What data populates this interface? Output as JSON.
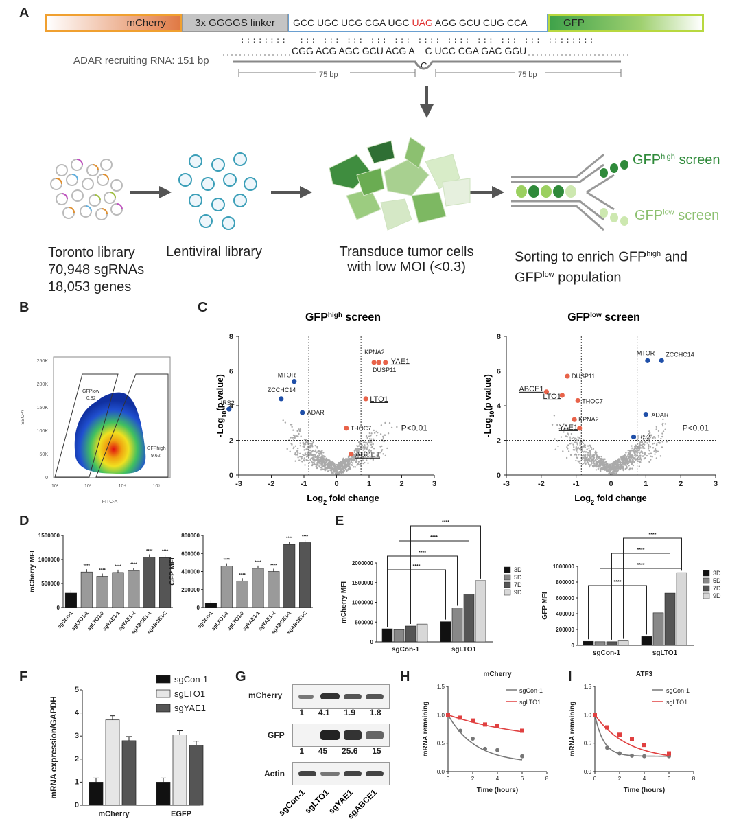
{
  "panels": {
    "A": "A",
    "B": "B",
    "C": "C",
    "D": "D",
    "E": "E",
    "F": "F",
    "G": "G",
    "H": "H",
    "I": "I"
  },
  "panelA": {
    "construct": {
      "mcherry": "mCherry",
      "linker": "3x GGGGS linker",
      "seq_pre": "GCC UGC UCG CGA UGC ",
      "seq_stop": "UAG",
      "seq_post": " AGG GCU CUG CCA",
      "gfp": "GFP",
      "colors": {
        "mcherry": "#e07a45",
        "linker": "#bdbdbd",
        "gfp": "#3fa24a",
        "stop": "#e03030"
      }
    },
    "adar_label": "ADAR recruiting RNA: 151 bp",
    "guide_seq_left": "CGG ACG AGC GCU ACG A",
    "guide_seq_right": "C UCC CGA GAC GGU",
    "mismatch_base": "C",
    "span_left": "75 bp",
    "span_right": "75 bp",
    "steps": [
      {
        "lines": [
          "Toronto library",
          "70,948 sgRNAs",
          "18,053 genes"
        ]
      },
      {
        "lines": [
          "Lentiviral library"
        ]
      },
      {
        "lines": [
          "Transduce tumor cells",
          "with low MOI (<0.3)"
        ]
      },
      {
        "lines": [
          "Sorting to enrich GFP",
          "high",
          " and",
          "GFP",
          "low",
          " population"
        ]
      }
    ],
    "screen_high": {
      "main": "GFP",
      "sup": "high",
      "tail": " screen"
    },
    "screen_low": {
      "main": "GFP",
      "sup": "low",
      "tail": " screen"
    }
  },
  "panelB": {
    "ylabel": "SSC-A",
    "xlabel": "FITC-A",
    "yticks": [
      "250K",
      "200K",
      "150K",
      "100K",
      "50K",
      "0"
    ],
    "xticks": [
      "10²",
      "10³",
      "10⁴",
      "10⁵"
    ],
    "gate_low": {
      "name": "GFPlow",
      "value": "0.82"
    },
    "gate_high": {
      "name": "GFPhigh",
      "value": "9.62"
    }
  },
  "panelC": {
    "chart_data": [
      {
        "type": "scatter",
        "title": "GFPhigh screen",
        "xlabel": "Log2 fold change",
        "ylabel": "-Log10(p value)",
        "xlim": [
          -3,
          3
        ],
        "ylim": [
          0,
          8
        ],
        "threshold_label": "P<0.01",
        "points": [
          {
            "label": "IRS2",
            "x": -3.3,
            "y": 3.8,
            "group": "blue"
          },
          {
            "label": "ZCCHC14",
            "x": -1.7,
            "y": 4.4,
            "group": "blue"
          },
          {
            "label": "MTOR",
            "x": -1.3,
            "y": 5.4,
            "group": "blue"
          },
          {
            "label": "ADAR",
            "x": -1.05,
            "y": 3.6,
            "group": "blue"
          },
          {
            "label": "KPNA2",
            "x": 1.15,
            "y": 6.5,
            "group": "red"
          },
          {
            "label": "DUSP11",
            "x": 1.3,
            "y": 6.5,
            "group": "red"
          },
          {
            "label": "YAE1",
            "x": 1.5,
            "y": 6.5,
            "group": "red",
            "underline": true
          },
          {
            "label": "LTO1",
            "x": 0.9,
            "y": 4.4,
            "group": "red",
            "underline": true
          },
          {
            "label": "THOC7",
            "x": 0.3,
            "y": 2.7,
            "group": "red"
          },
          {
            "label": "ABCE1",
            "x": 0.45,
            "y": 1.2,
            "group": "red",
            "underline": true
          }
        ]
      },
      {
        "type": "scatter",
        "title": "GFPlow screen",
        "xlabel": "Log2 fold change",
        "ylabel": "-Log10(p value)",
        "xlim": [
          -3,
          3
        ],
        "ylim": [
          0,
          8
        ],
        "threshold_label": "P<0.01",
        "points": [
          {
            "label": "MTOR",
            "x": 1.05,
            "y": 6.6,
            "group": "blue"
          },
          {
            "label": "ZCCHC14",
            "x": 1.45,
            "y": 6.6,
            "group": "blue"
          },
          {
            "label": "ADAR",
            "x": 1.0,
            "y": 3.5,
            "group": "blue"
          },
          {
            "label": "IRS2",
            "x": 0.65,
            "y": 2.2,
            "group": "blue"
          },
          {
            "label": "DUSP11",
            "x": -1.25,
            "y": 5.7,
            "group": "red"
          },
          {
            "label": "ABCE1",
            "x": -1.85,
            "y": 4.8,
            "group": "red",
            "underline": true
          },
          {
            "label": "LTO1",
            "x": -1.4,
            "y": 4.6,
            "group": "red",
            "underline": true
          },
          {
            "label": "THOC7",
            "x": -0.95,
            "y": 4.3,
            "group": "red"
          },
          {
            "label": "KPNA2",
            "x": -1.05,
            "y": 3.2,
            "group": "red"
          },
          {
            "label": "YAE1",
            "x": -0.9,
            "y": 2.7,
            "group": "red",
            "underline": true
          }
        ]
      }
    ],
    "xticks": [
      "-3",
      "-2",
      "-1",
      "0",
      "1",
      "2",
      "3"
    ],
    "yticks": [
      "0",
      "2",
      "4",
      "6",
      "8"
    ]
  },
  "panelD": {
    "chart_data": [
      {
        "type": "bar",
        "ylabel": "mCherry MFI",
        "ylim": [
          0,
          1500000
        ],
        "yticks": [
          "1500000",
          "1000000",
          "500000",
          "0"
        ],
        "categories": [
          "sgCon-1",
          "sgLTO1-1",
          "sgLTO1-2",
          "sgYAE1-1",
          "sgYAE1-2",
          "sgABCE1-1",
          "sgABCE1-2"
        ],
        "values": [
          300000,
          740000,
          650000,
          730000,
          770000,
          1050000,
          1040000
        ],
        "fills": [
          "#111",
          "#9a9a9a",
          "#9a9a9a",
          "#9a9a9a",
          "#9a9a9a",
          "#555",
          "#555"
        ],
        "sig": [
          "",
          "****",
          "****",
          "****",
          "****",
          "****",
          "****"
        ]
      },
      {
        "type": "bar",
        "ylabel": "GFP MFI",
        "ylim": [
          0,
          800000
        ],
        "yticks": [
          "800000",
          "600000",
          "400000",
          "200000",
          "0"
        ],
        "categories": [
          "sgCon-1",
          "sgLTO1-1",
          "sgLTO1-2",
          "sgYAE1-1",
          "sgYAE1-2",
          "sgABCE1-1",
          "sgABCE1-2"
        ],
        "values": [
          50000,
          460000,
          295000,
          435000,
          400000,
          700000,
          720000
        ],
        "fills": [
          "#111",
          "#9a9a9a",
          "#9a9a9a",
          "#9a9a9a",
          "#9a9a9a",
          "#555",
          "#555"
        ],
        "sig": [
          "",
          "****",
          "****",
          "****",
          "****",
          "****",
          "****"
        ]
      }
    ]
  },
  "panelE": {
    "legend": [
      "3D",
      "5D",
      "7D",
      "9D"
    ],
    "fills": [
      "#111",
      "#888",
      "#555",
      "#d8d8d8"
    ],
    "sig": "****",
    "chart_data": [
      {
        "type": "bar",
        "ylabel": "mCherry MFI",
        "ylim": [
          0,
          2000000
        ],
        "yticks": [
          "2000000",
          "1500000",
          "1000000",
          "500000",
          "0"
        ],
        "categories": [
          "sgCon-1",
          "sgLTO1"
        ],
        "series": [
          {
            "name": "3D",
            "values": [
              330000,
              510000
            ]
          },
          {
            "name": "5D",
            "values": [
              310000,
              860000
            ]
          },
          {
            "name": "7D",
            "values": [
              400000,
              1210000
            ]
          },
          {
            "name": "9D",
            "values": [
              450000,
              1550000
            ]
          }
        ]
      },
      {
        "type": "bar",
        "ylabel": "GFP MFI",
        "ylim": [
          0,
          1000000
        ],
        "yticks": [
          "1000000",
          "800000",
          "600000",
          "400000",
          "200000",
          "0"
        ],
        "categories": [
          "sgCon-1",
          "sgLTO1"
        ],
        "series": [
          {
            "name": "3D",
            "values": [
              50000,
              110000
            ]
          },
          {
            "name": "5D",
            "values": [
              45000,
              410000
            ]
          },
          {
            "name": "7D",
            "values": [
              45000,
              660000
            ]
          },
          {
            "name": "9D",
            "values": [
              55000,
              920000
            ]
          }
        ]
      }
    ]
  },
  "panelF": {
    "chart_data": {
      "type": "bar",
      "ylabel": "mRNA expression/GAPDH",
      "ylim": [
        0,
        5
      ],
      "yticks": [
        "5",
        "4",
        "3",
        "2",
        "1",
        "0"
      ],
      "categories": [
        "mCherry",
        "EGFP"
      ],
      "series": [
        {
          "name": "sgCon-1",
          "values": [
            1.0,
            1.0
          ]
        },
        {
          "name": "sgLTO1",
          "values": [
            3.7,
            3.05
          ]
        },
        {
          "name": "sgYAE1",
          "values": [
            2.8,
            2.6
          ]
        }
      ]
    },
    "fills": [
      "#111",
      "#e6e6e6",
      "#555"
    ]
  },
  "panelG": {
    "rows": [
      {
        "label": "mCherry",
        "values": [
          "1",
          "4.1",
          "1.9",
          "1.8"
        ]
      },
      {
        "label": "GFP",
        "values": [
          "1",
          "45",
          "25.6",
          "15"
        ]
      },
      {
        "label": "Actin",
        "values": []
      }
    ],
    "lanes": [
      "sgCon-1",
      "sgLTO1",
      "sgYAE1",
      "sgABCE1"
    ]
  },
  "panelH": {
    "chart_data": {
      "type": "line",
      "title": "mCherry",
      "xlabel": "Time (hours)",
      "ylabel": "mRNA remaining",
      "xlim": [
        0,
        8
      ],
      "ylim": [
        0,
        1.5
      ],
      "xticks": [
        "0",
        "2",
        "4",
        "6",
        "8"
      ],
      "yticks": [
        "1.5",
        "1.0",
        "0.5",
        "0.0"
      ],
      "series": [
        {
          "name": "sgCon-1",
          "color": "#777777",
          "x": [
            0,
            1,
            2,
            3,
            4,
            6
          ],
          "y": [
            1.0,
            0.72,
            0.58,
            0.4,
            0.38,
            0.27
          ]
        },
        {
          "name": "sgLTO1",
          "color": "#e04040",
          "x": [
            0,
            1,
            2,
            3,
            4,
            6
          ],
          "y": [
            1.0,
            0.95,
            0.9,
            0.83,
            0.8,
            0.72
          ]
        }
      ]
    }
  },
  "panelI": {
    "chart_data": {
      "type": "line",
      "title": "ATF3",
      "xlabel": "Time (hours)",
      "ylabel": "mRNA remaining",
      "xlim": [
        0,
        8
      ],
      "ylim": [
        0,
        1.5
      ],
      "xticks": [
        "0",
        "2",
        "4",
        "6",
        "8"
      ],
      "yticks": [
        "1.5",
        "1.0",
        "0.5",
        "0.0"
      ],
      "series": [
        {
          "name": "sgCon-1",
          "color": "#777777",
          "x": [
            0,
            1,
            2,
            3,
            4,
            6
          ],
          "y": [
            1.0,
            0.42,
            0.32,
            0.28,
            0.27,
            0.27
          ]
        },
        {
          "name": "sgLTO1",
          "color": "#e04040",
          "x": [
            0,
            1,
            2,
            3,
            4,
            6
          ],
          "y": [
            1.0,
            0.78,
            0.65,
            0.58,
            0.47,
            0.32
          ]
        }
      ]
    }
  }
}
